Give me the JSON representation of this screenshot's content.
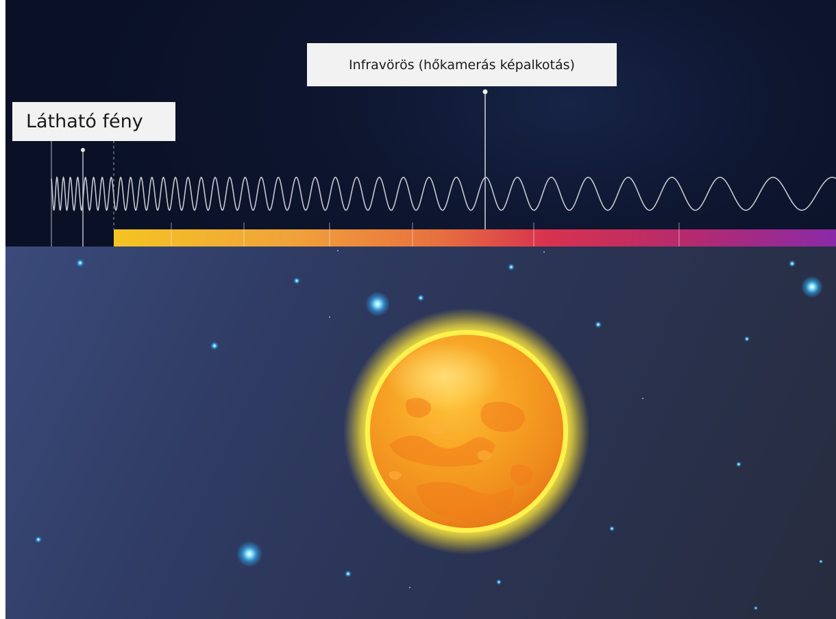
{
  "labels": {
    "infrared": "Infravörös (hőkamerás képalkotás)",
    "visible": "Látható fény"
  },
  "colors": {
    "spectrum_start": "#f5c423",
    "spectrum_mid": "#e8843a",
    "spectrum_red": "#d8324e",
    "spectrum_end": "#8a2aa8",
    "sun_core": "#f4a020",
    "sun_glow": "#fff34a",
    "star": "#5fd0ff"
  }
}
